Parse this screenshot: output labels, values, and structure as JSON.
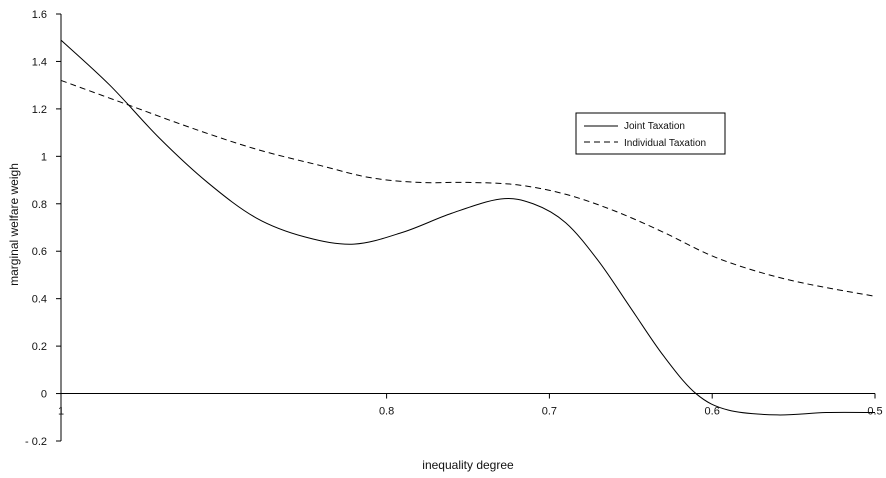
{
  "chart_data": {
    "type": "line",
    "title": "",
    "xlabel": "inequality degree",
    "ylabel": "marginal welfare weigh",
    "xlim": [
      1,
      0.5
    ],
    "ylim": [
      -0.2,
      1.6
    ],
    "x_reversed": true,
    "grid": false,
    "legend_position": "top-right",
    "x_ticks": [
      {
        "value": 1,
        "label": "1"
      },
      {
        "value": 0.8,
        "label": "0.8"
      },
      {
        "value": 0.7,
        "label": "0.7"
      },
      {
        "value": 0.6,
        "label": "0.6"
      },
      {
        "value": 0.5,
        "label": "0.5"
      }
    ],
    "y_ticks": [
      {
        "value": 1.6,
        "label": "1.6"
      },
      {
        "value": 1.4,
        "label": "1.4"
      },
      {
        "value": 1.2,
        "label": "1.2"
      },
      {
        "value": 1,
        "label": "1"
      },
      {
        "value": 0.8,
        "label": "0.8"
      },
      {
        "value": 0.6,
        "label": "0.6"
      },
      {
        "value": 0.4,
        "label": "0.4"
      },
      {
        "value": 0.2,
        "label": "0.2"
      },
      {
        "value": 0,
        "label": "0"
      },
      {
        "value": -0.2,
        "label": "- 0.2"
      }
    ],
    "series": [
      {
        "name": "Joint Taxation",
        "style": "solid",
        "color": "#000000",
        "x": [
          1.0,
          0.97,
          0.94,
          0.91,
          0.88,
          0.85,
          0.82,
          0.79,
          0.76,
          0.73,
          0.71,
          0.69,
          0.67,
          0.65,
          0.63,
          0.61,
          0.59,
          0.56,
          0.53,
          0.5
        ],
        "y": [
          1.49,
          1.3,
          1.08,
          0.89,
          0.74,
          0.66,
          0.63,
          0.68,
          0.76,
          0.82,
          0.8,
          0.72,
          0.56,
          0.36,
          0.16,
          0.0,
          -0.07,
          -0.09,
          -0.08,
          -0.08
        ]
      },
      {
        "name": "Individual Taxation",
        "style": "dashed",
        "color": "#000000",
        "x": [
          1.0,
          0.96,
          0.92,
          0.88,
          0.84,
          0.81,
          0.78,
          0.75,
          0.72,
          0.69,
          0.66,
          0.63,
          0.6,
          0.57,
          0.54,
          0.5
        ],
        "y": [
          1.32,
          1.22,
          1.12,
          1.03,
          0.96,
          0.91,
          0.89,
          0.89,
          0.88,
          0.84,
          0.77,
          0.68,
          0.58,
          0.51,
          0.46,
          0.41
        ]
      }
    ]
  }
}
